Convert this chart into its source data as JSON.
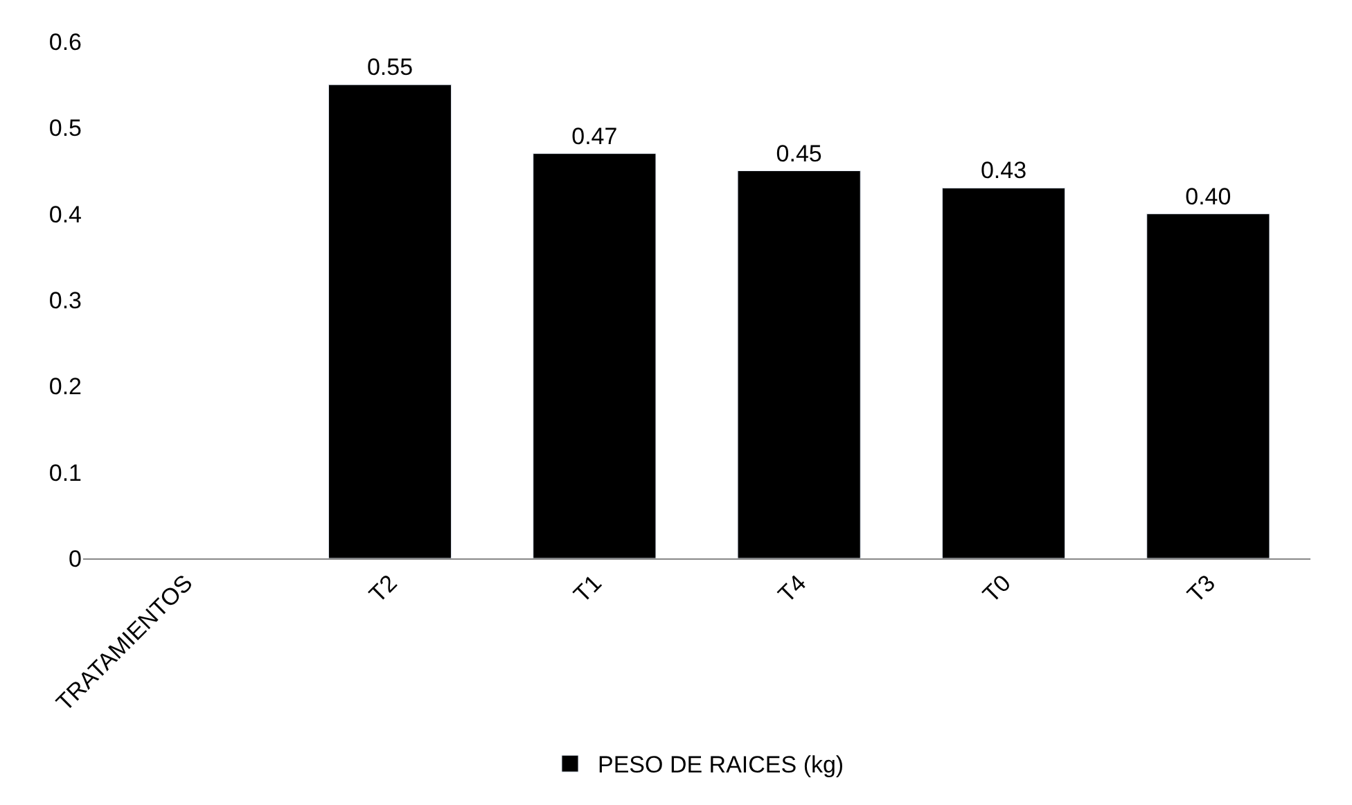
{
  "chart_data": {
    "type": "bar",
    "categories": [
      "TRATAMIENTOS",
      "T2",
      "T1",
      "T4",
      "T0",
      "T3"
    ],
    "series": [
      {
        "name": "PESO DE RAICES (kg)",
        "color": "#000000",
        "values": [
          null,
          0.55,
          0.47,
          0.45,
          0.43,
          0.4
        ],
        "value_labels": [
          null,
          "0.55",
          "0.47",
          "0.45",
          "0.43",
          "0.40"
        ]
      }
    ],
    "ylim": [
      0,
      0.6
    ],
    "yticks": [
      0,
      0.1,
      0.2,
      0.3,
      0.4,
      0.5,
      0.6
    ],
    "legend": "bottom"
  }
}
